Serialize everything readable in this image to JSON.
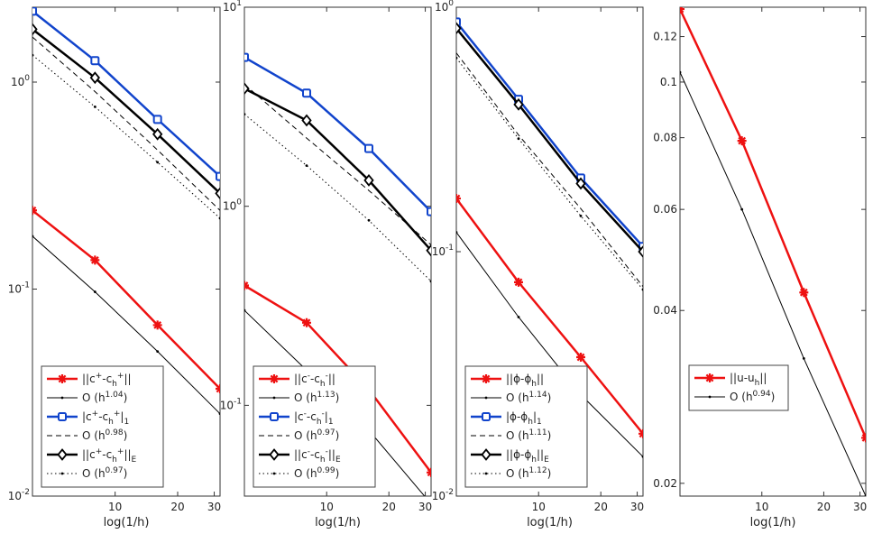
{
  "colors": {
    "red": "#ee1111",
    "blue": "#1144cc",
    "black": "#000000",
    "axis": "#333333"
  },
  "chart_data": [
    {
      "type": "line",
      "scale": "loglog",
      "xlabel": "log(1/h)",
      "xlim": [
        4,
        32
      ],
      "xticks": [
        10,
        20,
        30
      ],
      "xticklabels": [
        "10",
        "20",
        "30"
      ],
      "ylim": [
        0.01,
        2.3
      ],
      "yticks": [
        0.01,
        0.1,
        1
      ],
      "yticklabels": [
        "10",
        "10",
        "10"
      ],
      "ytickexps": [
        "-2",
        "-1",
        "0"
      ],
      "yaxis_side": "left",
      "legend": "bottom-left",
      "series": [
        {
          "name": "c_plus_L2",
          "label_base": "||c",
          "label_sup": "+",
          "label_mid": "-c",
          "label_sub": "h",
          "label_sup2": "+",
          "label_tail": "||",
          "color": "#ee1111",
          "style": "solid",
          "marker": "star",
          "width": 2.5,
          "x": [
            4,
            8,
            16,
            32
          ],
          "y": [
            0.24,
            0.138,
            0.067,
            0.033
          ]
        },
        {
          "name": "ref_1",
          "label_base": "O (h",
          "label_sup": "1.04",
          "label_tail": ")",
          "color": "#000000",
          "style": "solid",
          "marker": "dot",
          "width": 1,
          "x": [
            4,
            8,
            16,
            32
          ],
          "y": [
            0.18,
            0.097,
            0.05,
            0.025
          ]
        },
        {
          "name": "c_plus_H1",
          "label_base": "|c",
          "label_sup": "+",
          "label_mid": "-c",
          "label_sub": "h",
          "label_sup2": "+",
          "label_tail": "|",
          "label_sub2": "1",
          "color": "#1144cc",
          "style": "solid",
          "marker": "square",
          "width": 2.5,
          "x": [
            4,
            8,
            16,
            32
          ],
          "y": [
            2.2,
            1.27,
            0.66,
            0.35
          ]
        },
        {
          "name": "ref_2",
          "label_base": "O (h",
          "label_sup": "0.98",
          "label_tail": ")",
          "color": "#000000",
          "style": "dashed",
          "marker": "none",
          "width": 1,
          "x": [
            4,
            8,
            16,
            32
          ],
          "y": [
            1.65,
            0.9,
            0.47,
            0.24
          ]
        },
        {
          "name": "c_plus_E",
          "label_base": "||c",
          "label_sup": "+",
          "label_mid": "-c",
          "label_sub": "h",
          "label_sup2": "+",
          "label_tail": "||",
          "label_sub2": "E",
          "color": "#000000",
          "style": "solid",
          "marker": "diamond",
          "width": 2.5,
          "x": [
            4,
            8,
            16,
            32
          ],
          "y": [
            1.8,
            1.05,
            0.56,
            0.29
          ]
        },
        {
          "name": "ref_3",
          "label_base": "O (h",
          "label_sup": "0.97",
          "label_tail": ")",
          "color": "#000000",
          "style": "dotted",
          "marker": "dot",
          "width": 1,
          "x": [
            4,
            8,
            16,
            32
          ],
          "y": [
            1.35,
            0.76,
            0.41,
            0.22
          ]
        }
      ]
    },
    {
      "type": "line",
      "scale": "loglog",
      "xlabel": "log(1/h)",
      "xlim": [
        4,
        32
      ],
      "xticks": [
        10,
        20,
        30
      ],
      "xticklabels": [
        "10",
        "20",
        "30"
      ],
      "ylim": [
        0.035,
        10
      ],
      "yticks": [
        0.1,
        1,
        10
      ],
      "yticklabels": [
        "10",
        "10",
        "10"
      ],
      "ytickexps": [
        "-1",
        "0",
        "1"
      ],
      "yaxis_side": "left",
      "legend": "bottom-left",
      "series": [
        {
          "name": "c_minus_L2",
          "label_base": "||c",
          "label_sup": "-",
          "label_mid": "-c",
          "label_sub": "h",
          "label_sup2": "-",
          "label_tail": "||",
          "color": "#ee1111",
          "style": "solid",
          "marker": "star",
          "width": 2.5,
          "x": [
            4,
            8,
            16,
            32
          ],
          "y": [
            0.4,
            0.26,
            0.12,
            0.046
          ]
        },
        {
          "name": "ref_1",
          "label_base": "O (h",
          "label_sup": "1.13",
          "label_tail": ")",
          "color": "#000000",
          "style": "solid",
          "marker": "dot",
          "width": 1,
          "x": [
            4,
            8,
            16,
            32
          ],
          "y": [
            0.3,
            0.15,
            0.075,
            0.032
          ]
        },
        {
          "name": "c_minus_H1",
          "label_base": "|c",
          "label_sup": "-",
          "label_mid": "-c",
          "label_sub": "h",
          "label_sup2": "-",
          "label_tail": "|",
          "label_sub2": "1",
          "color": "#1144cc",
          "style": "solid",
          "marker": "square",
          "width": 2.5,
          "x": [
            4,
            8,
            16,
            32
          ],
          "y": [
            5.6,
            3.7,
            1.95,
            0.94
          ]
        },
        {
          "name": "ref_2",
          "label_base": "O (h",
          "label_sup": "0.97",
          "label_tail": ")",
          "color": "#000000",
          "style": "dashed",
          "marker": "none",
          "width": 1,
          "x": [
            4,
            8,
            16,
            32
          ],
          "y": [
            4.1,
            2.2,
            1.2,
            0.64
          ]
        },
        {
          "name": "c_minus_E",
          "label_base": "||c",
          "label_sup": "-",
          "label_mid": "-c",
          "label_sub": "h",
          "label_sup2": "-",
          "label_tail": "||",
          "label_sub2": "E",
          "color": "#000000",
          "style": "solid",
          "marker": "diamond",
          "width": 2.5,
          "x": [
            4,
            8,
            16,
            32
          ],
          "y": [
            3.9,
            2.7,
            1.35,
            0.6
          ]
        },
        {
          "name": "ref_3",
          "label_base": "O (h",
          "label_sup": "0.99",
          "label_tail": ")",
          "color": "#000000",
          "style": "dotted",
          "marker": "dot",
          "width": 1,
          "x": [
            4,
            8,
            16,
            32
          ],
          "y": [
            2.9,
            1.6,
            0.85,
            0.42
          ]
        }
      ]
    },
    {
      "type": "line",
      "scale": "loglog",
      "xlabel": "log(1/h)",
      "xlim": [
        4,
        32
      ],
      "xticks": [
        10,
        20,
        30
      ],
      "xticklabels": [
        "10",
        "20",
        "30"
      ],
      "ylim": [
        0.01,
        1
      ],
      "yticks": [
        0.01,
        0.1,
        1
      ],
      "yticklabels": [
        "10",
        "10",
        "10"
      ],
      "ytickexps": [
        "-2",
        "-1",
        "0"
      ],
      "yaxis_side": "left",
      "legend": "bottom-left",
      "series": [
        {
          "name": "phi_L2",
          "label_base": "||ϕ-ϕ",
          "label_sub": "h",
          "label_tail": "||",
          "color": "#ee1111",
          "style": "solid",
          "marker": "star",
          "width": 2.5,
          "x": [
            4,
            8,
            16,
            32
          ],
          "y": [
            0.165,
            0.075,
            0.037,
            0.018
          ]
        },
        {
          "name": "ref_1",
          "label_base": "O (h",
          "label_sup": "1.14",
          "label_tail": ")",
          "color": "#000000",
          "style": "solid",
          "marker": "dot",
          "width": 1,
          "x": [
            4,
            8,
            16,
            32
          ],
          "y": [
            0.12,
            0.054,
            0.026,
            0.0145
          ]
        },
        {
          "name": "phi_H1",
          "label_base": "|ϕ-ϕ",
          "label_sub": "h",
          "label_tail": "|",
          "label_sub2": "1",
          "color": "#1144cc",
          "style": "solid",
          "marker": "square",
          "width": 2.5,
          "x": [
            4,
            8,
            16,
            32
          ],
          "y": [
            0.87,
            0.42,
            0.2,
            0.105
          ]
        },
        {
          "name": "ref_2",
          "label_base": "O (h",
          "label_sup": "1.11",
          "label_tail": ")",
          "color": "#000000",
          "style": "dashed",
          "marker": "none",
          "width": 1,
          "x": [
            4,
            8,
            16,
            32
          ],
          "y": [
            0.65,
            0.3,
            0.15,
            0.072
          ]
        },
        {
          "name": "phi_E",
          "label_base": "||ϕ-ϕ",
          "label_sub": "h",
          "label_tail": "||",
          "label_sub2": "E",
          "color": "#000000",
          "style": "solid",
          "marker": "diamond",
          "width": 2.5,
          "x": [
            4,
            8,
            16,
            32
          ],
          "y": [
            0.82,
            0.4,
            0.19,
            0.1
          ]
        },
        {
          "name": "ref_3",
          "label_base": "O (h",
          "label_sup": "1.12",
          "label_tail": ")",
          "color": "#000000",
          "style": "dotted",
          "marker": "dot",
          "width": 1,
          "x": [
            4,
            8,
            16,
            32
          ],
          "y": [
            0.62,
            0.29,
            0.14,
            0.07
          ]
        }
      ]
    },
    {
      "type": "line",
      "scale": "loglog",
      "xlabel": "log(1/h)",
      "xlim": [
        4,
        32
      ],
      "xticks": [
        10,
        20,
        30
      ],
      "xticklabels": [
        "10",
        "20",
        "30"
      ],
      "ylim": [
        0.019,
        0.135
      ],
      "yticks": [
        0.02,
        0.04,
        0.06,
        0.08,
        0.1,
        0.12
      ],
      "yticklabels": [
        "0.02",
        "0.04",
        "0.06",
        "0.08",
        "0.1",
        "0.12"
      ],
      "ytickexps": [
        "",
        "",
        "",
        "",
        "",
        ""
      ],
      "yaxis_side": "left",
      "legend": "middle-left",
      "series": [
        {
          "name": "u_L2",
          "label_base": "||u-u",
          "label_sub": "h",
          "label_tail": "||",
          "color": "#ee1111",
          "style": "solid",
          "marker": "star",
          "width": 2.5,
          "x": [
            4,
            8,
            16,
            32
          ],
          "y": [
            0.134,
            0.079,
            0.043,
            0.024
          ]
        },
        {
          "name": "ref_1",
          "label_base": "O (h",
          "label_sup": "0.94",
          "label_tail": ")",
          "color": "#000000",
          "style": "solid",
          "marker": "dot",
          "width": 1,
          "x": [
            4,
            8,
            16,
            32
          ],
          "y": [
            0.104,
            0.06,
            0.033,
            0.019
          ]
        }
      ]
    }
  ]
}
